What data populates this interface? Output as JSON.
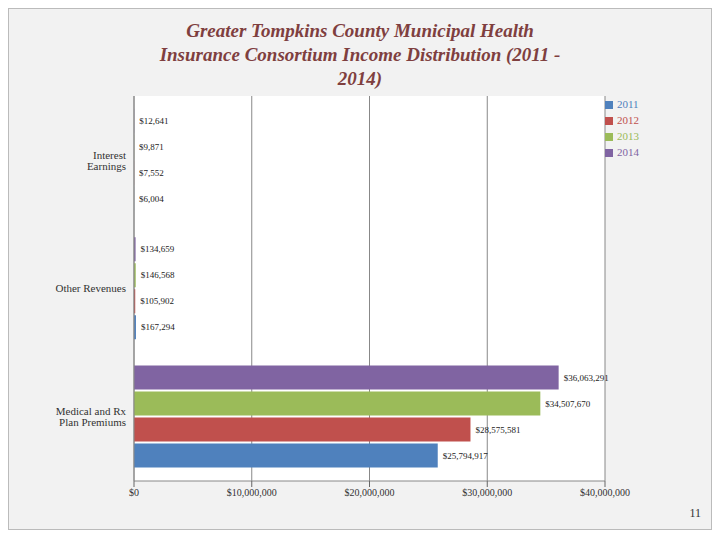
{
  "chart_data": {
    "type": "bar",
    "title": "Greater Tompkins County Municipal Health Insurance Consortium Income Distribution (2011 - 2014)",
    "orientation": "horizontal",
    "categories": [
      "Interest Earnings",
      "Other Revenues",
      "Medical and Rx Plan Premiums"
    ],
    "series": [
      {
        "name": "2014",
        "color": "#8064a2",
        "values": [
          12641,
          134659,
          36063291
        ],
        "value_labels": [
          "$12,641",
          "$134,659",
          "$36,063,291"
        ]
      },
      {
        "name": "2013",
        "color": "#9bbb59",
        "values": [
          9871,
          146568,
          34507670
        ],
        "value_labels": [
          "$9,871",
          "$146,568",
          "$34,507,670"
        ]
      },
      {
        "name": "2012",
        "color": "#c0504d",
        "values": [
          7552,
          105902,
          28575581
        ],
        "value_labels": [
          "$7,552",
          "$105,902",
          "$28,575,581"
        ]
      },
      {
        "name": "2011",
        "color": "#4f81bd",
        "values": [
          6004,
          167294,
          25794917
        ],
        "value_labels": [
          "$6,004",
          "$167,294",
          "$25,794,917"
        ]
      }
    ],
    "xlim": [
      0,
      40000000
    ],
    "xticks": [
      {
        "value": 0,
        "label": "$0"
      },
      {
        "value": 10000000,
        "label": "$10,000,000"
      },
      {
        "value": 20000000,
        "label": "$20,000,000"
      },
      {
        "value": 30000000,
        "label": "$30,000,000"
      },
      {
        "value": 40000000,
        "label": "$40,000,000"
      }
    ],
    "grid": true,
    "legend": "top-right",
    "data_labels": true,
    "annotations": [
      "11"
    ]
  }
}
